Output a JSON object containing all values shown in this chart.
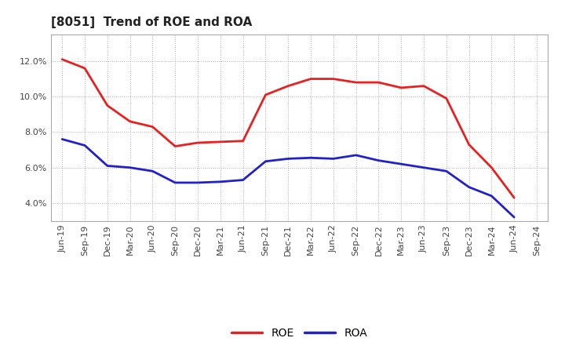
{
  "title": "[8051]  Trend of ROE and ROA",
  "labels": [
    "Jun-19",
    "Sep-19",
    "Dec-19",
    "Mar-20",
    "Jun-20",
    "Sep-20",
    "Dec-20",
    "Mar-21",
    "Jun-21",
    "Sep-21",
    "Dec-21",
    "Mar-22",
    "Jun-22",
    "Sep-22",
    "Dec-22",
    "Mar-23",
    "Jun-23",
    "Sep-23",
    "Dec-23",
    "Mar-24",
    "Jun-24",
    "Sep-24"
  ],
  "roe": [
    12.1,
    11.6,
    9.5,
    8.6,
    8.3,
    7.2,
    7.4,
    7.45,
    7.5,
    10.1,
    10.6,
    11.0,
    11.0,
    10.8,
    10.8,
    10.5,
    10.6,
    9.9,
    7.3,
    6.0,
    4.3,
    null
  ],
  "roa": [
    7.6,
    7.25,
    6.1,
    6.0,
    5.8,
    5.15,
    5.15,
    5.2,
    5.3,
    6.35,
    6.5,
    6.55,
    6.5,
    6.7,
    6.4,
    6.2,
    6.0,
    5.8,
    4.9,
    4.4,
    3.2,
    null
  ],
  "roe_color": "#e82020",
  "roa_color": "#2020cc",
  "background_color": "#ffffff",
  "grid_color": "#b0b0b0",
  "ylim": [
    3.0,
    13.5
  ],
  "yticks": [
    4.0,
    6.0,
    8.0,
    10.0,
    12.0
  ],
  "title_fontsize": 11,
  "legend_fontsize": 10,
  "axis_fontsize": 8
}
